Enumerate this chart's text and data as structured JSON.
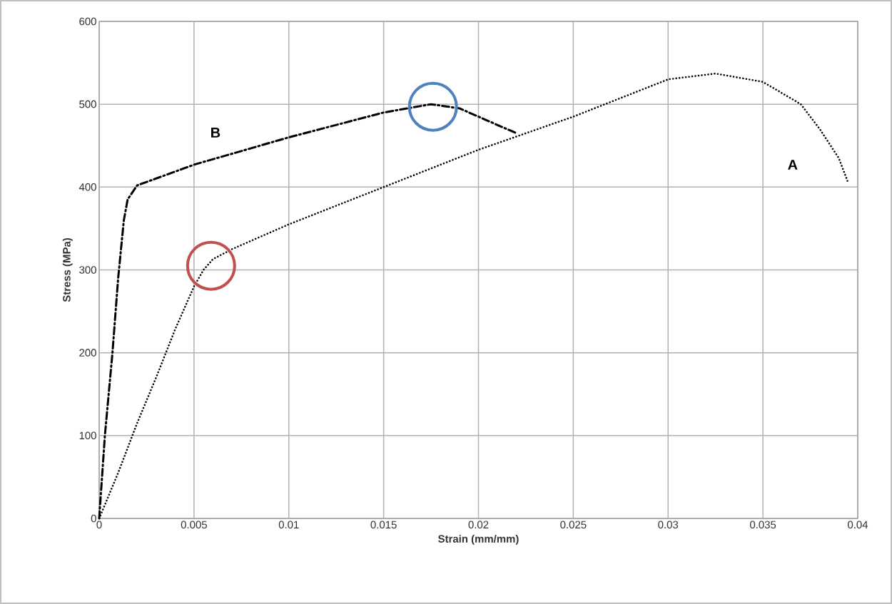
{
  "chart_data": {
    "type": "line",
    "xlabel": "Strain (mm/mm)",
    "ylabel": "Stress (MPa)",
    "xlim": [
      0,
      0.04
    ],
    "xticks": [
      0,
      0.005,
      0.01,
      0.015,
      0.02,
      0.025,
      0.03,
      0.035,
      0.04
    ],
    "ylim": [
      0,
      600
    ],
    "yticks": [
      0,
      100,
      200,
      300,
      400,
      500,
      600
    ],
    "grid": true,
    "series": [
      {
        "name": "B",
        "color": "#000000",
        "line_style": "dashed",
        "marker": "none",
        "x": [
          0,
          0.0003,
          0.0007,
          0.001,
          0.0013,
          0.0015,
          0.002,
          0.005,
          0.01,
          0.015,
          0.0175,
          0.019,
          0.02,
          0.022
        ],
        "values": [
          0,
          100,
          200,
          290,
          360,
          385,
          402,
          427,
          460,
          490,
          500,
          495,
          485,
          465
        ]
      },
      {
        "name": "A",
        "color": "#000000",
        "line_style": "dotted",
        "marker": "none",
        "x": [
          0,
          0.001,
          0.002,
          0.003,
          0.004,
          0.005,
          0.0055,
          0.006,
          0.007,
          0.01,
          0.015,
          0.02,
          0.025,
          0.03,
          0.0325,
          0.035,
          0.037,
          0.038,
          0.039,
          0.0395
        ],
        "values": [
          0,
          55,
          115,
          170,
          228,
          280,
          300,
          313,
          325,
          355,
          400,
          445,
          485,
          530,
          537,
          527,
          500,
          470,
          435,
          405
        ]
      },
      {
        "type": "scatter",
        "color": "#c0504d",
        "marker": "circle",
        "x": [
          0.0059
        ],
        "values": [
          305
        ]
      },
      {
        "type": "scatter",
        "color": "#4f81bd",
        "marker": "circle",
        "x": [
          0.0176
        ],
        "values": [
          497
        ]
      }
    ]
  }
}
